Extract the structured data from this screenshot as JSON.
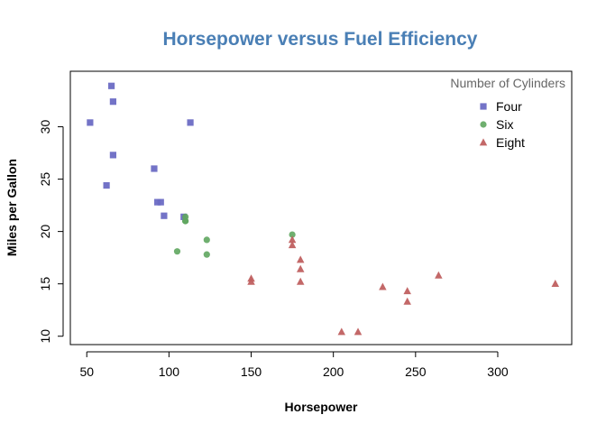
{
  "chart_data": {
    "type": "scatter",
    "title": "Horsepower versus Fuel Efficiency",
    "xlabel": "Horsepower",
    "ylabel": "Miles per Gallon",
    "xlim": [
      40,
      345
    ],
    "ylim": [
      9.2,
      35.3
    ],
    "xticks": [
      50,
      100,
      150,
      200,
      250,
      300
    ],
    "yticks": [
      10,
      15,
      20,
      25,
      30
    ],
    "grid": false,
    "legend": {
      "title": "Number of Cylinders",
      "placement": "top-right"
    },
    "series": [
      {
        "name": "Four",
        "marker": "square",
        "color": "#6b6bc4",
        "points": [
          [
            52,
            30.4
          ],
          [
            62,
            24.4
          ],
          [
            65,
            33.9
          ],
          [
            66,
            32.4
          ],
          [
            66,
            27.3
          ],
          [
            91,
            26.0
          ],
          [
            93,
            22.8
          ],
          [
            95,
            22.8
          ],
          [
            97,
            21.5
          ],
          [
            109,
            21.4
          ],
          [
            113,
            30.4
          ]
        ]
      },
      {
        "name": "Six",
        "marker": "circle",
        "color": "#5fa65f",
        "points": [
          [
            105,
            18.1
          ],
          [
            110,
            21.0
          ],
          [
            110,
            21.0
          ],
          [
            110,
            21.4
          ],
          [
            123,
            19.2
          ],
          [
            123,
            17.8
          ],
          [
            175,
            19.7
          ]
        ]
      },
      {
        "name": "Eight",
        "marker": "triangle",
        "color": "#c06060",
        "points": [
          [
            150,
            15.5
          ],
          [
            150,
            15.2
          ],
          [
            175,
            19.2
          ],
          [
            175,
            18.7
          ],
          [
            180,
            16.4
          ],
          [
            180,
            17.3
          ],
          [
            180,
            15.2
          ],
          [
            205,
            10.4
          ],
          [
            215,
            10.4
          ],
          [
            230,
            14.7
          ],
          [
            245,
            14.3
          ],
          [
            245,
            13.3
          ],
          [
            264,
            15.8
          ],
          [
            335,
            15.0
          ]
        ]
      }
    ]
  }
}
